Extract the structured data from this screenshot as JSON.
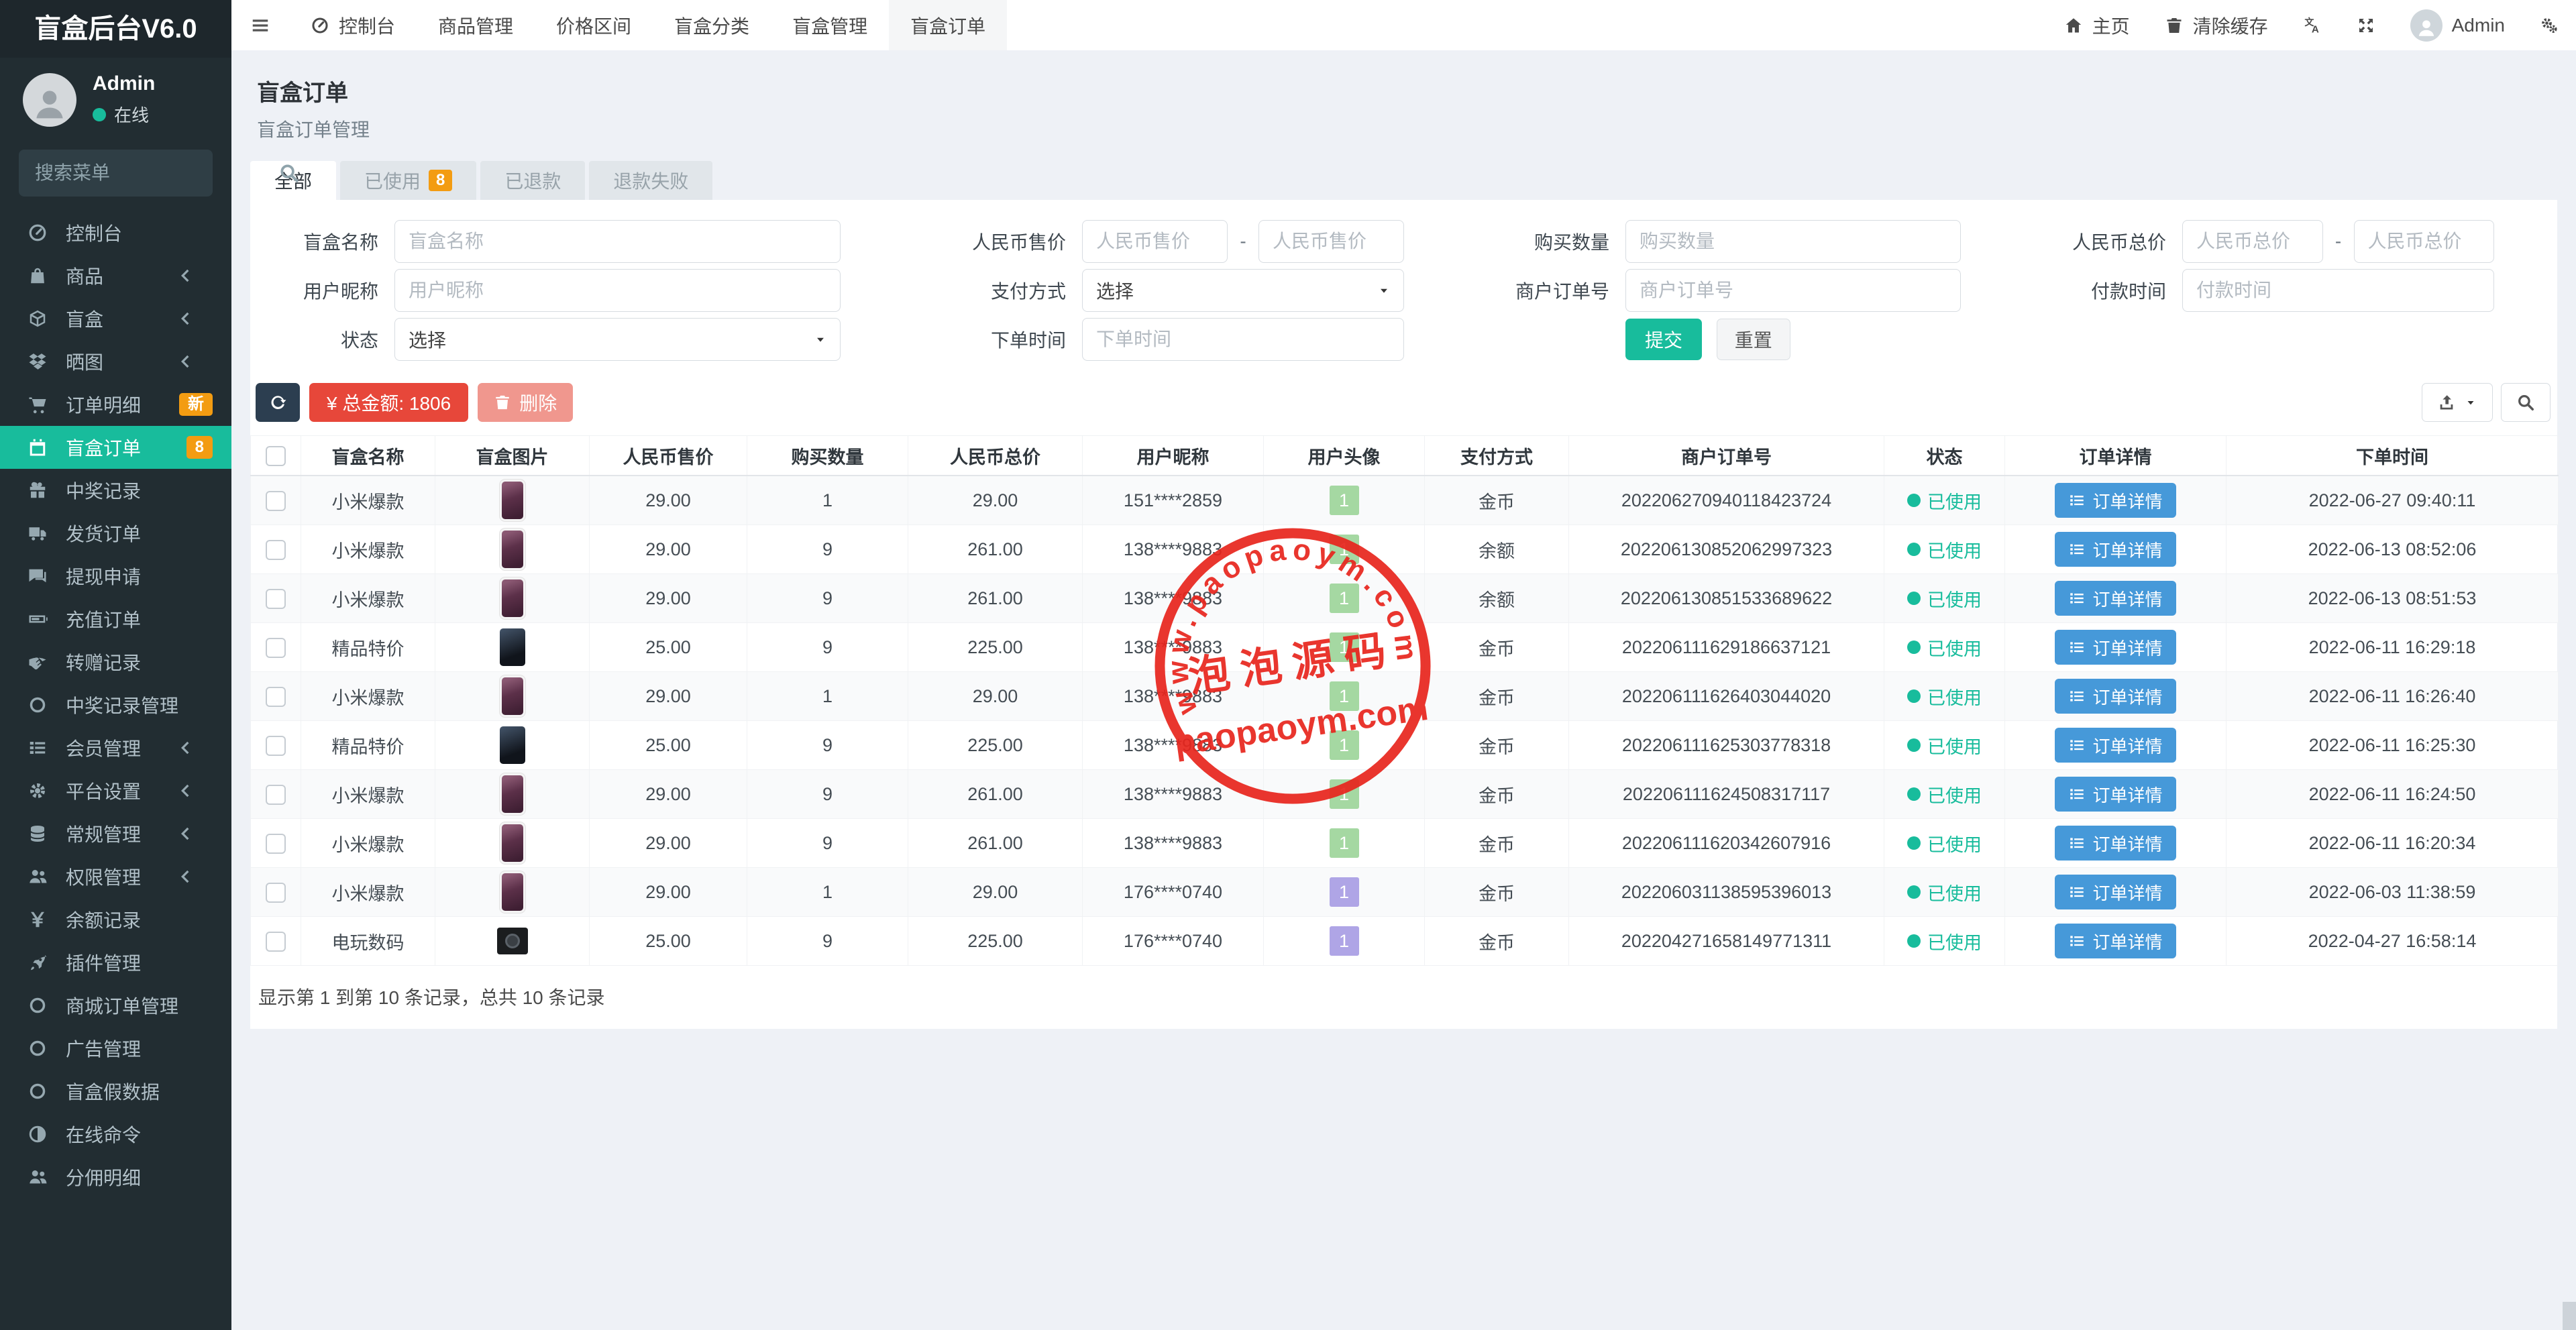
{
  "app": {
    "title": "盲盒后台V6.0"
  },
  "user": {
    "name": "Admin",
    "status": "在线"
  },
  "sidebar": {
    "search_placeholder": "搜索菜单",
    "items": [
      {
        "icon": "tachometer",
        "label": "控制台"
      },
      {
        "icon": "bag",
        "label": "商品",
        "chevron": true
      },
      {
        "icon": "cube",
        "label": "盲盒",
        "chevron": true
      },
      {
        "icon": "dropbox",
        "label": "晒图",
        "chevron": true
      },
      {
        "icon": "cart",
        "label": "订单明细",
        "badge": "新"
      },
      {
        "icon": "calendar",
        "label": "盲盒订单",
        "badge": "8",
        "active": true
      },
      {
        "icon": "gift",
        "label": "中奖记录"
      },
      {
        "icon": "truck",
        "label": "发货订单"
      },
      {
        "icon": "comments",
        "label": "提现申请"
      },
      {
        "icon": "battery",
        "label": "充值订单"
      },
      {
        "icon": "handshake",
        "label": "转赠记录"
      },
      {
        "icon": "circle",
        "label": "中奖记录管理"
      },
      {
        "icon": "list",
        "label": "会员管理",
        "chevron": true
      },
      {
        "icon": "gear",
        "label": "平台设置",
        "chevron": true
      },
      {
        "icon": "database",
        "label": "常规管理",
        "chevron": true
      },
      {
        "icon": "users",
        "label": "权限管理",
        "chevron": true
      },
      {
        "icon": "yen",
        "label": "余额记录"
      },
      {
        "icon": "rocket",
        "label": "插件管理"
      },
      {
        "icon": "circle",
        "label": "商城订单管理"
      },
      {
        "icon": "circle",
        "label": "广告管理"
      },
      {
        "icon": "circle",
        "label": "盲盒假数据"
      },
      {
        "icon": "adjust",
        "label": "在线命令"
      },
      {
        "icon": "users",
        "label": "分佣明细"
      }
    ]
  },
  "topnav": {
    "items": [
      {
        "label": "控制台",
        "icon": "tachometer"
      },
      {
        "label": "商品管理"
      },
      {
        "label": "价格区间"
      },
      {
        "label": "盲盒分类"
      },
      {
        "label": "盲盒管理"
      },
      {
        "label": "盲盒订单",
        "active": true
      }
    ]
  },
  "topbar": {
    "home_label": "主页",
    "clear_cache_label": "清除缓存",
    "user_label": "Admin"
  },
  "page": {
    "title": "盲盒订单",
    "subtitle": "盲盒订单管理"
  },
  "tabs": [
    {
      "label": "全部",
      "active": true
    },
    {
      "label": "已使用",
      "badge": "8"
    },
    {
      "label": "已退款"
    },
    {
      "label": "退款失败"
    }
  ],
  "filters": {
    "box_name": {
      "label": "盲盒名称",
      "placeholder": "盲盒名称"
    },
    "price": {
      "label": "人民币售价",
      "placeholder": "人民币售价",
      "separator": "-"
    },
    "qty": {
      "label": "购买数量",
      "placeholder": "购买数量"
    },
    "total": {
      "label": "人民币总价",
      "placeholder": "人民币总价",
      "separator": "-"
    },
    "nick": {
      "label": "用户昵称",
      "placeholder": "用户昵称"
    },
    "pay": {
      "label": "支付方式",
      "value": "选择"
    },
    "order_no": {
      "label": "商户订单号",
      "placeholder": "商户订单号"
    },
    "pay_time": {
      "label": "付款时间",
      "placeholder": "付款时间"
    },
    "status": {
      "label": "状态",
      "value": "选择"
    },
    "order_time": {
      "label": "下单时间",
      "placeholder": "下单时间"
    },
    "submit": "提交",
    "reset": "重置"
  },
  "toolbar": {
    "total_label": "¥ 总金额:  1806",
    "delete_label": "删除"
  },
  "table": {
    "columns": [
      "盲盒名称",
      "盲盒图片",
      "人民币售价",
      "购买数量",
      "人民币总价",
      "用户昵称",
      "用户头像",
      "支付方式",
      "商户订单号",
      "状态",
      "订单详情",
      "下单时间"
    ],
    "detail_button": "订单详情",
    "rows": [
      {
        "name": "小米爆款",
        "image": "phone-purple",
        "price": "29.00",
        "qty": "1",
        "total": "29.00",
        "nick": "151****2859",
        "avatar_label": "1",
        "avatar_color": "green",
        "pay": "金币",
        "order_no": "202206270940118423724",
        "status": "已使用",
        "time": "2022-06-27 09:40:11"
      },
      {
        "name": "小米爆款",
        "image": "phone-purple",
        "price": "29.00",
        "qty": "9",
        "total": "261.00",
        "nick": "138****9883",
        "avatar_label": "1",
        "avatar_color": "green",
        "pay": "余额",
        "order_no": "202206130852062997323",
        "status": "已使用",
        "time": "2022-06-13 08:52:06"
      },
      {
        "name": "小米爆款",
        "image": "phone-purple",
        "price": "29.00",
        "qty": "9",
        "total": "261.00",
        "nick": "138****9883",
        "avatar_label": "1",
        "avatar_color": "green",
        "pay": "余额",
        "order_no": "202206130851533689622",
        "status": "已使用",
        "time": "2022-06-13 08:51:53"
      },
      {
        "name": "精品特价",
        "image": "phone-dark",
        "price": "25.00",
        "qty": "9",
        "total": "225.00",
        "nick": "138****9883",
        "avatar_label": "1",
        "avatar_color": "green",
        "pay": "金币",
        "order_no": "202206111629186637121",
        "status": "已使用",
        "time": "2022-06-11 16:29:18"
      },
      {
        "name": "小米爆款",
        "image": "phone-purple",
        "price": "29.00",
        "qty": "1",
        "total": "29.00",
        "nick": "138****9883",
        "avatar_label": "1",
        "avatar_color": "green",
        "pay": "金币",
        "order_no": "202206111626403044020",
        "status": "已使用",
        "time": "2022-06-11 16:26:40"
      },
      {
        "name": "精品特价",
        "image": "phone-dark",
        "price": "25.00",
        "qty": "9",
        "total": "225.00",
        "nick": "138****9883",
        "avatar_label": "1",
        "avatar_color": "green",
        "pay": "金币",
        "order_no": "202206111625303778318",
        "status": "已使用",
        "time": "2022-06-11 16:25:30"
      },
      {
        "name": "小米爆款",
        "image": "phone-purple",
        "price": "29.00",
        "qty": "9",
        "total": "261.00",
        "nick": "138****9883",
        "avatar_label": "1",
        "avatar_color": "green",
        "pay": "金币",
        "order_no": "202206111624508317117",
        "status": "已使用",
        "time": "2022-06-11 16:24:50"
      },
      {
        "name": "小米爆款",
        "image": "phone-purple",
        "price": "29.00",
        "qty": "9",
        "total": "261.00",
        "nick": "138****9883",
        "avatar_label": "1",
        "avatar_color": "green",
        "pay": "金币",
        "order_no": "202206111620342607916",
        "status": "已使用",
        "time": "2022-06-11 16:20:34"
      },
      {
        "name": "小米爆款",
        "image": "phone-purple",
        "price": "29.00",
        "qty": "1",
        "total": "29.00",
        "nick": "176****0740",
        "avatar_label": "1",
        "avatar_color": "purple",
        "pay": "金币",
        "order_no": "202206031138595396013",
        "status": "已使用",
        "time": "2022-06-03 11:38:59"
      },
      {
        "name": "电玩数码",
        "image": "camera-black",
        "price": "25.00",
        "qty": "9",
        "total": "225.00",
        "nick": "176****0740",
        "avatar_label": "1",
        "avatar_color": "purple",
        "pay": "金币",
        "order_no": "202204271658149771311",
        "status": "已使用",
        "time": "2022-04-27 16:58:14"
      }
    ]
  },
  "footer": {
    "summary": "显示第 1 到第 10 条记录，总共 10 条记录"
  },
  "watermark": {
    "arc_text": "www.paopaoym.com",
    "center_text": "泡泡源码",
    "bottom_text": "paopaoym.com",
    "color": "#e8251d"
  },
  "colors": {
    "accent_teal": "#18bc9c",
    "badge_orange": "#f39c12",
    "danger_red": "#e7473a",
    "info_blue": "#4699d9",
    "stamp_red": "#e8251d",
    "avatar_green": "#a5d8a2",
    "avatar_purple": "#afa5e6",
    "sidebar_bg": "#222d32"
  }
}
